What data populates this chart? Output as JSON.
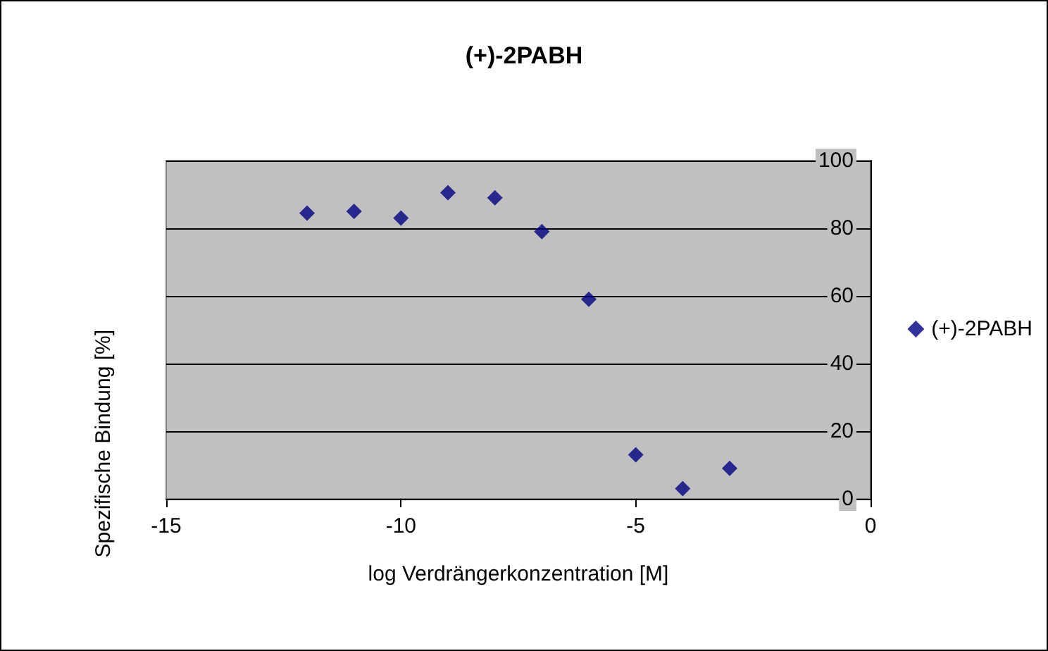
{
  "chart_data": {
    "type": "scatter",
    "title": "(+)-2PABH",
    "xlabel": "log Verdrängerkonzentration [M]",
    "ylabel": "Spezifische Bindung [%]",
    "x": [
      -12,
      -11,
      -10,
      -9,
      -8,
      -7,
      -6,
      -5,
      -4,
      -3
    ],
    "series": [
      {
        "name": "(+)-2PABH",
        "color": "#000080",
        "values": [
          84.5,
          85,
          83,
          90.5,
          89,
          79,
          59,
          13,
          3,
          9
        ]
      }
    ],
    "xlim": [
      -15,
      0
    ],
    "xticks": [
      -15,
      -10,
      -5,
      0
    ],
    "ylim": [
      0,
      100
    ],
    "yticks": [
      0,
      20,
      40,
      60,
      80,
      100
    ],
    "grid": "y",
    "legend": "right",
    "marker": "diamond"
  }
}
